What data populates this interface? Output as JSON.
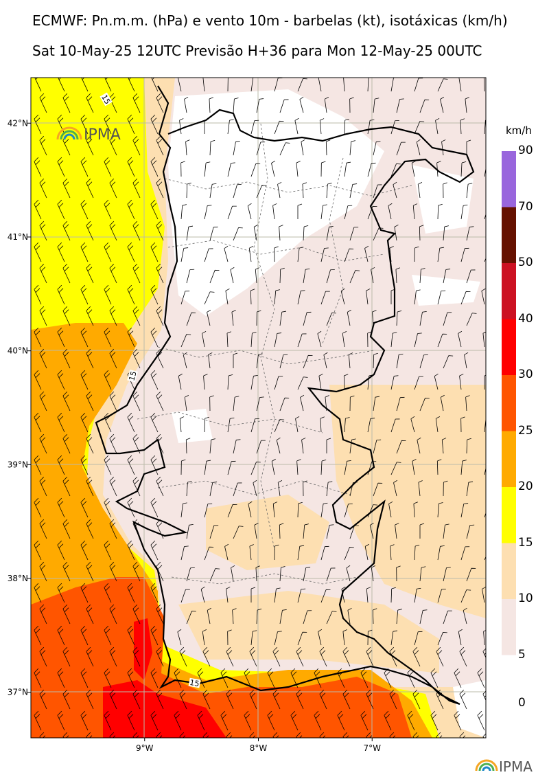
{
  "header": {
    "title": "ECMWF: Pn.m.m. (hPa) e vento 10m - barbelas (kt), isotáxicas (km/h)",
    "subtitle": "Sat 10-May-25 12UTC Previsão H+36 para Mon 12-May-25 00UTC"
  },
  "map": {
    "lon_range": [
      -10.0,
      -6.0
    ],
    "lat_range": [
      36.6,
      42.4
    ],
    "lon_ticks": [
      {
        "value": -9,
        "label": "9°W"
      },
      {
        "value": -8,
        "label": "8°W"
      },
      {
        "value": -7,
        "label": "7°W"
      }
    ],
    "lat_ticks": [
      {
        "value": 42,
        "label": "42°N"
      },
      {
        "value": 41,
        "label": "41°N"
      },
      {
        "value": 40,
        "label": "40°N"
      },
      {
        "value": 39,
        "label": "39°N"
      },
      {
        "value": 38,
        "label": "38°N"
      },
      {
        "value": 37,
        "label": "37°N"
      }
    ],
    "contour_labels": [
      "15",
      "15",
      "15"
    ]
  },
  "colorbar": {
    "unit": "km/h",
    "levels": [
      "0",
      "5",
      "10",
      "15",
      "20",
      "25",
      "30",
      "40",
      "50",
      "70",
      "90"
    ],
    "colors": [
      "#f5e6e3",
      "#fddfb1",
      "#ffff00",
      "#ffaa00",
      "#ff5500",
      "#ff0000",
      "#cc1122",
      "#661100",
      "#9966dd"
    ]
  },
  "logo": {
    "text": "IPMA",
    "colors": [
      "#f5a623",
      "#4caf50",
      "#1e88c8"
    ]
  }
}
